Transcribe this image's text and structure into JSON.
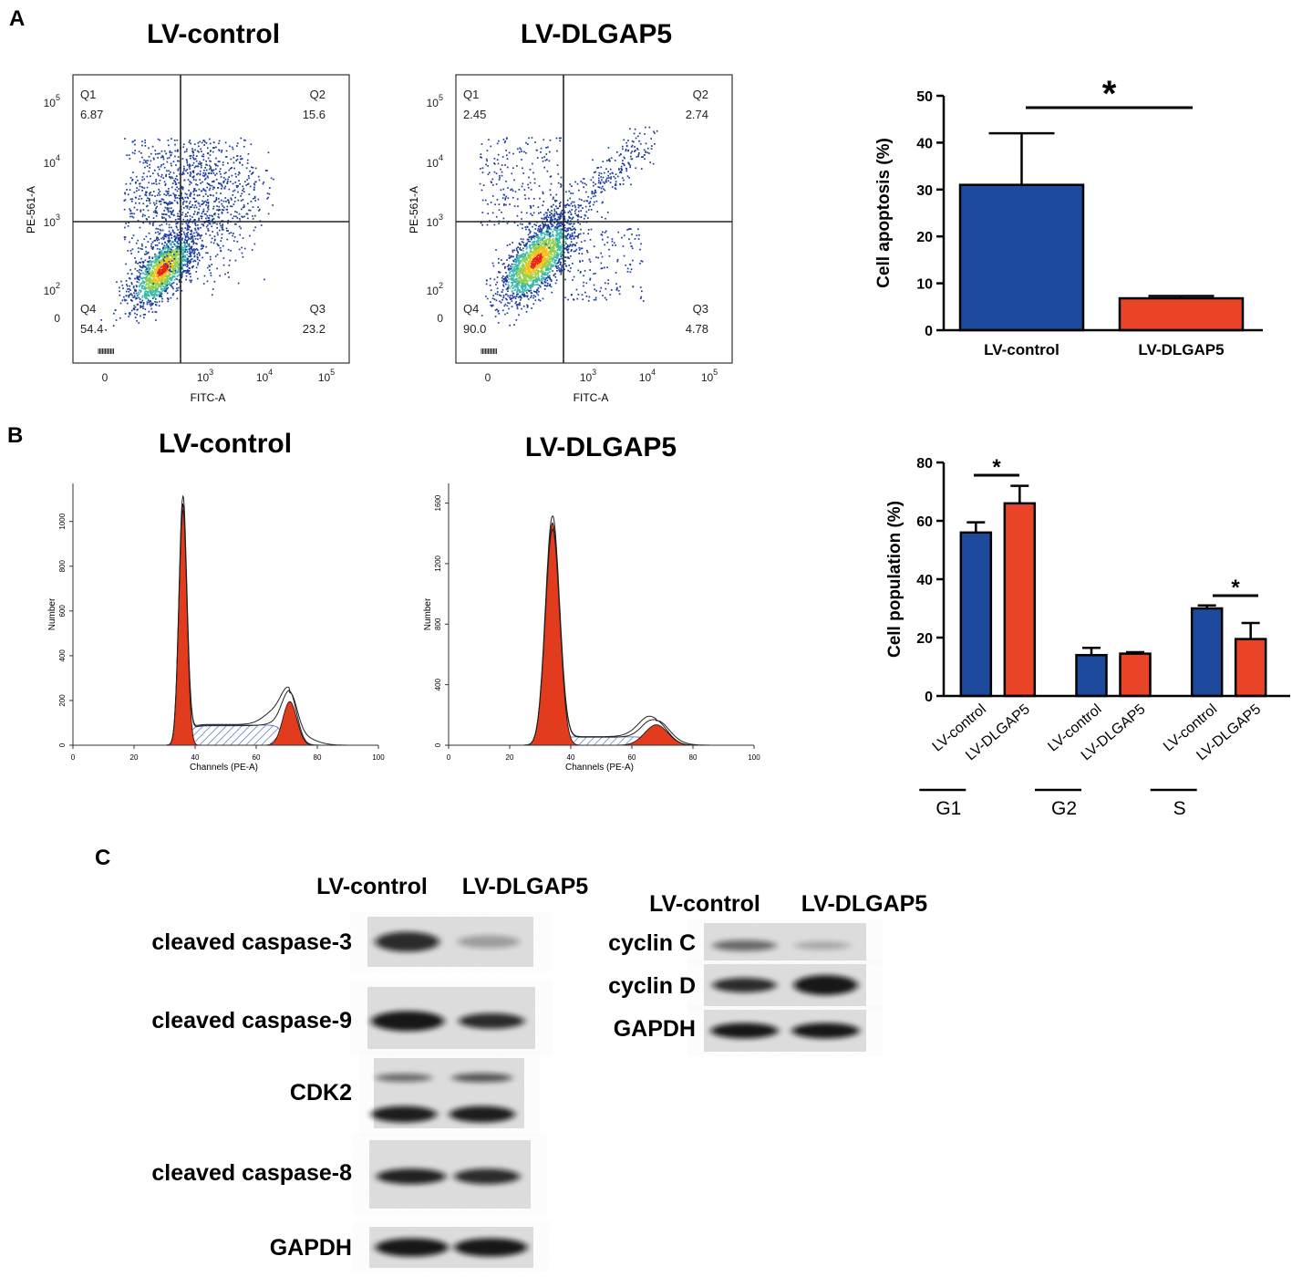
{
  "panel_labels": [
    "A",
    "B",
    "C"
  ],
  "flow_plots": [
    {
      "title": "LV-control",
      "quadrants": [
        {
          "label": "Q1",
          "value": "6.87"
        },
        {
          "label": "Q2",
          "value": "15.6"
        },
        {
          "label": "Q3",
          "value": "23.2"
        },
        {
          "label": "Q4",
          "value": "54.4"
        }
      ]
    },
    {
      "title": "LV-DLGAP5",
      "quadrants": [
        {
          "label": "Q1",
          "value": "2.45"
        },
        {
          "label": "Q2",
          "value": "2.74"
        },
        {
          "label": "Q3",
          "value": "4.78"
        },
        {
          "label": "Q4",
          "value": "90.0"
        }
      ]
    }
  ],
  "flow_axes": {
    "y_label": "PE-561-A",
    "x_label": "FITC-A",
    "yticks": [
      {
        "base": "10",
        "exp": "5"
      },
      {
        "base": "10",
        "exp": "4"
      },
      {
        "base": "10",
        "exp": "3"
      },
      {
        "base": "10",
        "exp": "2"
      },
      {
        "base": "0"
      }
    ],
    "xticks": [
      {
        "base": "0"
      },
      {
        "base": "10",
        "exp": "3"
      },
      {
        "base": "10",
        "exp": "4"
      },
      {
        "base": "10",
        "exp": "5"
      }
    ]
  },
  "cycle_plots": [
    {
      "title": "LV-control",
      "ylim": [
        0,
        1170
      ],
      "yticks": [
        0,
        200,
        400,
        600,
        800,
        1000
      ]
    },
    {
      "title": "LV-DLGAP5",
      "ylim": [
        0,
        1730
      ],
      "yticks": [
        0,
        400,
        800,
        1200,
        1600
      ]
    }
  ],
  "cycle_axes": {
    "y_label": "Number",
    "x_label": "Channels (PE-A)",
    "xticks": [
      0,
      20,
      40,
      60,
      80,
      100
    ]
  },
  "chart_data": [
    {
      "type": "bar",
      "y_label": "Cell apoptosis (%)",
      "categories": [
        "LV-control",
        "LV-DLGAP5"
      ],
      "values": [
        31,
        6.8
      ],
      "errors": [
        11,
        0.5
      ],
      "colors": [
        "#1d4a9c",
        "#ea4428"
      ],
      "ylim": [
        0,
        50
      ],
      "yticks": [
        0,
        10,
        20,
        30,
        40,
        50
      ],
      "annotations": [
        "*"
      ]
    },
    {
      "type": "grouped-bar",
      "y_label": "Cell population (%)",
      "categories": [
        "G1",
        "G2",
        "S"
      ],
      "series": [
        {
          "name": "LV-control",
          "color": "#1d4a9c",
          "values": [
            56,
            14,
            30
          ],
          "errors": [
            3.5,
            2.5,
            1
          ]
        },
        {
          "name": "LV-DLGAP5",
          "color": "#ea4428",
          "values": [
            66,
            14.5,
            19.5
          ],
          "errors": [
            6,
            0.5,
            5.5
          ]
        }
      ],
      "ylim": [
        0,
        80
      ],
      "yticks": [
        0,
        20,
        40,
        60,
        80
      ],
      "annotations": [
        "*",
        "*"
      ]
    }
  ],
  "blots": {
    "left": {
      "columns": [
        "LV-control",
        "LV-DLGAP5"
      ],
      "rows": [
        "cleaved caspase-3",
        "cleaved caspase-9",
        "CDK2",
        "cleaved caspase-8",
        "GAPDH"
      ]
    },
    "right": {
      "columns": [
        "LV-control",
        "LV-DLGAP5"
      ],
      "rows": [
        "cyclin C",
        "cyclin D",
        "GAPDH"
      ]
    }
  }
}
